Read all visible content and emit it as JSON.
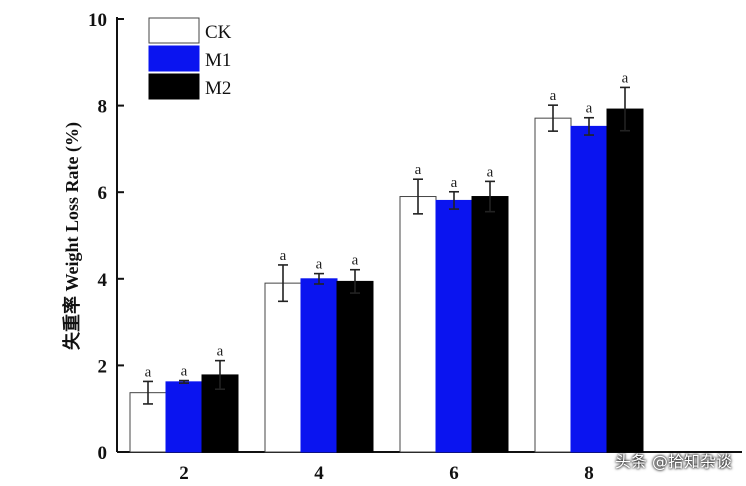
{
  "chart_data": {
    "type": "bar",
    "title": "",
    "xlabel": "",
    "ylabel": "失重率  Weight Loss Rate (%)",
    "ylim": [
      0,
      10
    ],
    "yticks": [
      0,
      2,
      4,
      6,
      8,
      10
    ],
    "categories": [
      "2",
      "4",
      "6",
      "8"
    ],
    "legend_position": "top-left",
    "grid": false,
    "series": [
      {
        "name": "CK",
        "color": "#ffffff",
        "values": [
          1.37,
          3.9,
          5.9,
          7.71
        ],
        "errors": [
          0.26,
          0.42,
          0.4,
          0.3
        ],
        "labels": [
          "a",
          "a",
          "a",
          "a"
        ]
      },
      {
        "name": "M1",
        "color": "#0a14f0",
        "values": [
          1.62,
          4.0,
          5.81,
          7.52
        ],
        "errors": [
          0.03,
          0.12,
          0.2,
          0.2
        ],
        "labels": [
          "a",
          "a",
          "a",
          "a"
        ]
      },
      {
        "name": "M2",
        "color": "#000000",
        "values": [
          1.78,
          3.94,
          5.9,
          7.92
        ],
        "errors": [
          0.33,
          0.27,
          0.35,
          0.5
        ],
        "labels": [
          "a",
          "a",
          "a",
          "a"
        ]
      }
    ]
  },
  "watermark": "头条 @拾知杂谈"
}
